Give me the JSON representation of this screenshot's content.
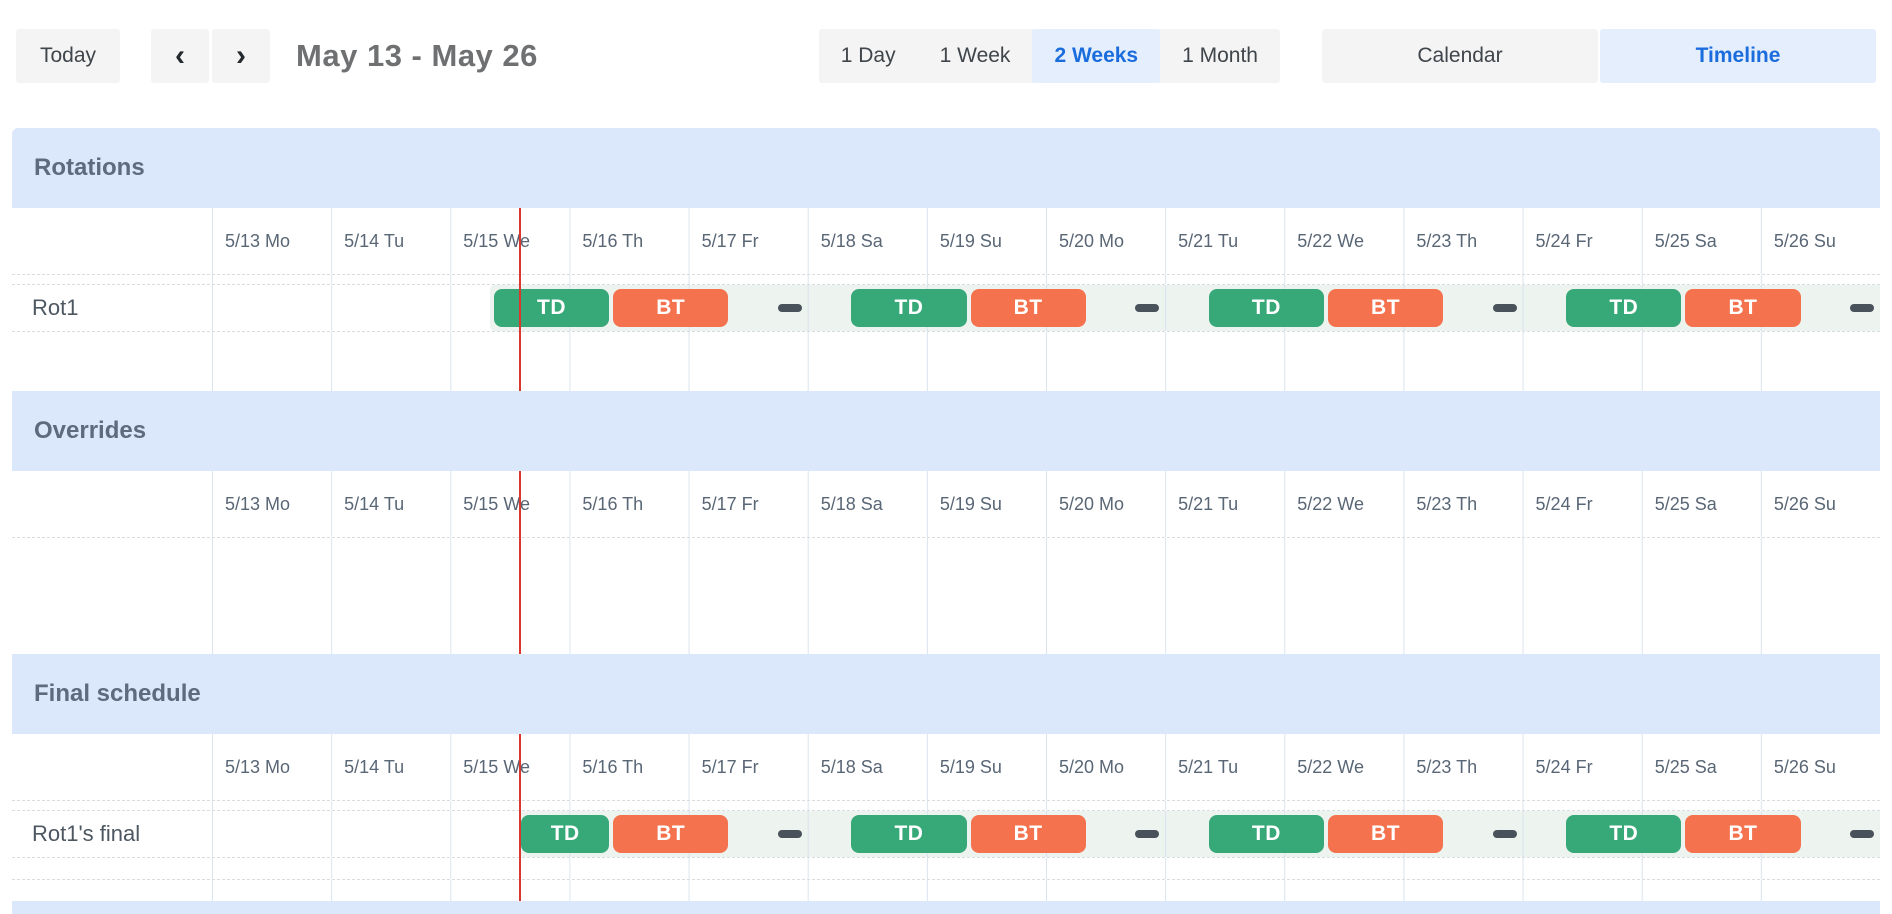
{
  "toolbar": {
    "today_label": "Today",
    "prev_icon": "‹",
    "next_icon": "›",
    "title": "May 13 - May 26",
    "range_options": [
      {
        "label": "1 Day",
        "active": false
      },
      {
        "label": "1 Week",
        "active": false
      },
      {
        "label": "2 Weeks",
        "active": true
      },
      {
        "label": "1 Month",
        "active": false
      }
    ],
    "view_options": [
      {
        "label": "Calendar",
        "active": false
      },
      {
        "label": "Timeline",
        "active": true
      }
    ]
  },
  "timeline": {
    "day_labels": [
      "5/13 Mo",
      "5/14 Tu",
      "5/15 We",
      "5/16 Th",
      "5/17 Fr",
      "5/18 Sa",
      "5/19 Su",
      "5/20 Mo",
      "5/21 Tu",
      "5/22 We",
      "5/23 Th",
      "5/24 Fr",
      "5/25 Sa",
      "5/26 Su"
    ],
    "days_shown": 14,
    "now_marker_day": 2.58,
    "colors": {
      "shift_green": "#37a878",
      "shift_orange": "#f4724e",
      "section_band": "#dbe7fa",
      "now_line": "#da372f",
      "lane_bg": "#edf3ee",
      "gap_dash": "#49525a",
      "active_blue": "#1b6ddd",
      "active_blue_bg": "#e4eefc"
    },
    "sections": [
      {
        "title": "Rotations",
        "rows": [
          {
            "label": "Rot1",
            "lane_start_day": 2.33,
            "bars": [
              {
                "label": "TD",
                "start_day": 2.35,
                "end_day": 3.35,
                "color": "#37a878"
              },
              {
                "label": "BT",
                "start_day": 3.35,
                "end_day": 4.35,
                "color": "#f4724e"
              },
              {
                "label": "TD",
                "start_day": 5.35,
                "end_day": 6.35,
                "color": "#37a878"
              },
              {
                "label": "BT",
                "start_day": 6.35,
                "end_day": 7.35,
                "color": "#f4724e"
              },
              {
                "label": "TD",
                "start_day": 8.35,
                "end_day": 9.35,
                "color": "#37a878"
              },
              {
                "label": "BT",
                "start_day": 9.35,
                "end_day": 10.35,
                "color": "#f4724e"
              },
              {
                "label": "TD",
                "start_day": 11.35,
                "end_day": 12.35,
                "color": "#37a878"
              },
              {
                "label": "BT",
                "start_day": 12.35,
                "end_day": 13.35,
                "color": "#f4724e"
              }
            ],
            "gap_markers_day": [
              4.85,
              7.85,
              10.85,
              13.85
            ]
          }
        ]
      },
      {
        "title": "Overrides",
        "rows": []
      },
      {
        "title": "Final schedule",
        "rows": [
          {
            "label": "Rot1's final",
            "lane_start_day": 2.58,
            "bars": [
              {
                "label": "TD",
                "start_day": 2.58,
                "end_day": 3.35,
                "color": "#37a878"
              },
              {
                "label": "BT",
                "start_day": 3.35,
                "end_day": 4.35,
                "color": "#f4724e"
              },
              {
                "label": "TD",
                "start_day": 5.35,
                "end_day": 6.35,
                "color": "#37a878"
              },
              {
                "label": "BT",
                "start_day": 6.35,
                "end_day": 7.35,
                "color": "#f4724e"
              },
              {
                "label": "TD",
                "start_day": 8.35,
                "end_day": 9.35,
                "color": "#37a878"
              },
              {
                "label": "BT",
                "start_day": 9.35,
                "end_day": 10.35,
                "color": "#f4724e"
              },
              {
                "label": "TD",
                "start_day": 11.35,
                "end_day": 12.35,
                "color": "#37a878"
              },
              {
                "label": "BT",
                "start_day": 12.35,
                "end_day": 13.35,
                "color": "#f4724e"
              }
            ],
            "gap_markers_day": [
              4.85,
              7.85,
              10.85,
              13.85
            ]
          }
        ]
      }
    ]
  }
}
